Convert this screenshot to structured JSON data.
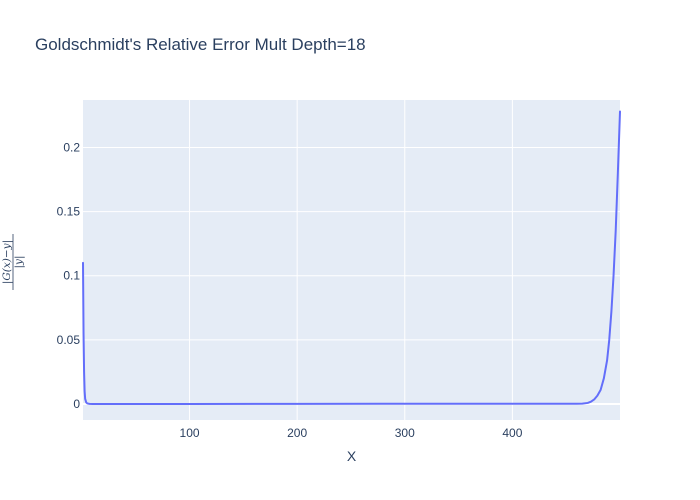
{
  "chart_data": {
    "type": "line",
    "title": "Goldschmidt's Relative Error Mult Depth=18",
    "xlabel": "X",
    "ylabel": {
      "numerator": "|G(x)−y|",
      "denominator": "|y|"
    },
    "xlim": [
      1,
      500
    ],
    "ylim": [
      -0.0125,
      0.237
    ],
    "xticks": [
      100,
      200,
      300,
      400
    ],
    "xtick_labels": [
      "100",
      "200",
      "300",
      "400"
    ],
    "yticks": [
      0,
      0.05,
      0.1,
      0.15,
      0.2
    ],
    "ytick_labels": [
      "0",
      "0.05",
      "0.1",
      "0.15",
      "0.2"
    ],
    "grid": true,
    "legend": "none",
    "colors": {
      "line": "#636efa",
      "plot_bg": "#e5ecf6",
      "grid": "#ffffff",
      "text": "#2a3f5f"
    },
    "series": [
      {
        "x": [
          1,
          1.5,
          2,
          2.5,
          3,
          4,
          5,
          7,
          10,
          20,
          50,
          100,
          200,
          300,
          400,
          440,
          460,
          465,
          470,
          473,
          476,
          479,
          482,
          485,
          488,
          490,
          492,
          494,
          496,
          498,
          500
        ],
        "y": [
          0.11,
          0.055,
          0.025,
          0.01,
          0.004,
          0.0012,
          0.0004,
          0.0001,
          0,
          0,
          0,
          0,
          0.0001,
          0.0002,
          0.0002,
          0.0002,
          0.0002,
          0.0003,
          0.0008,
          0.0018,
          0.0035,
          0.0065,
          0.011,
          0.02,
          0.034,
          0.05,
          0.072,
          0.1,
          0.135,
          0.18,
          0.228
        ]
      }
    ]
  }
}
